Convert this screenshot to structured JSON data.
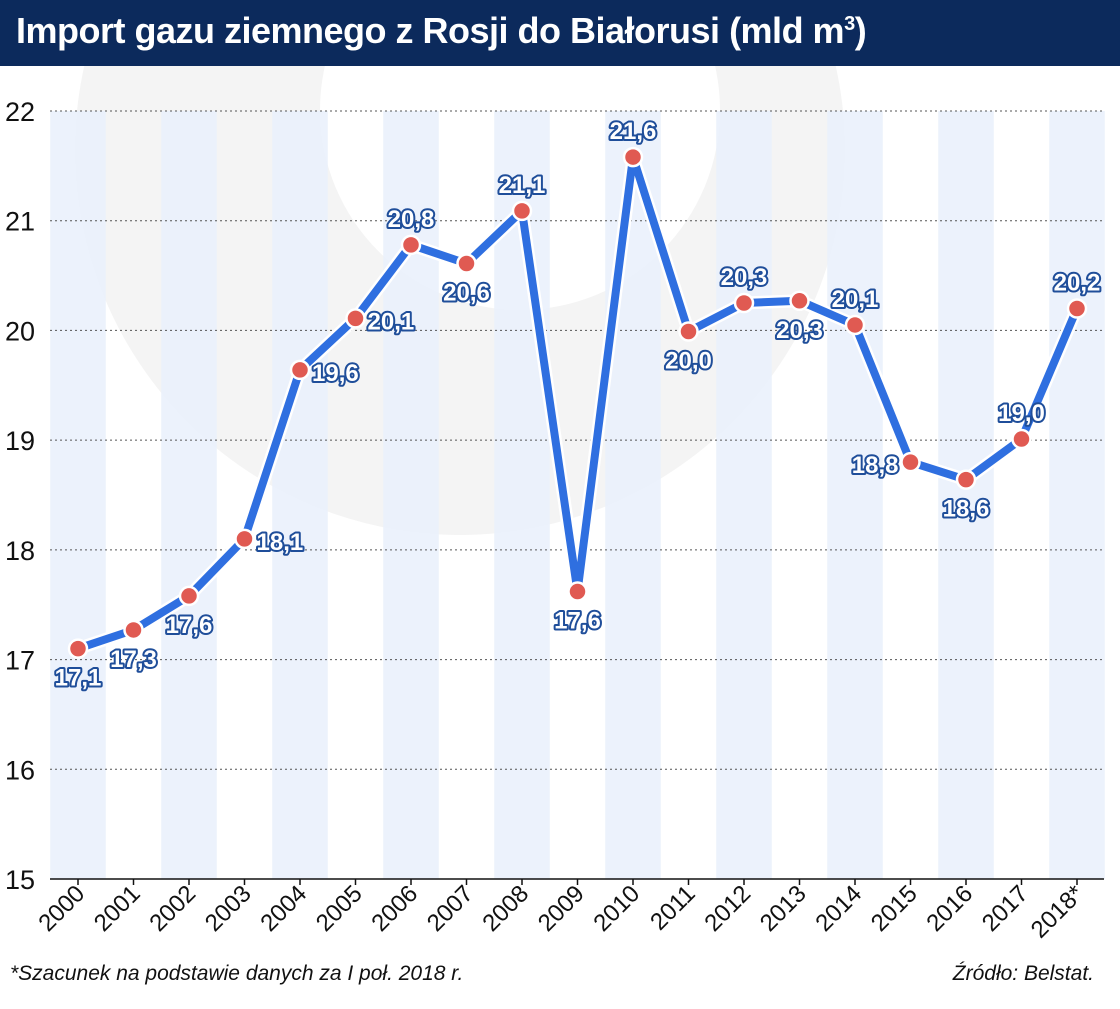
{
  "chart_data": {
    "type": "line",
    "title": "Import gazu ziemnego z Rosji do Białorusi (mld m",
    "title_sup": "3",
    "title_close": ")",
    "xlabel": "",
    "ylabel": "",
    "categories": [
      "2000",
      "2001",
      "2002",
      "2003",
      "2004",
      "2005",
      "2006",
      "2007",
      "2008",
      "2009",
      "2010",
      "2011",
      "2012",
      "2013",
      "2014",
      "2015",
      "2016",
      "2017",
      "2018*"
    ],
    "series": [
      {
        "name": "Import gazu",
        "values": [
          17.1,
          17.27,
          17.58,
          18.1,
          19.64,
          20.11,
          20.78,
          20.61,
          21.09,
          17.62,
          21.58,
          19.99,
          20.25,
          20.27,
          20.05,
          18.8,
          18.64,
          19.01,
          20.2
        ],
        "labels": [
          "17,1",
          "17,3",
          "17,6",
          "18,1",
          "19,6",
          "20,1",
          "20,8",
          "20,6",
          "21,1",
          "17,6",
          "21,6",
          "20,0",
          "20,3",
          "20,3",
          "20,1",
          "18,8",
          "18,6",
          "19,0",
          "20,2"
        ],
        "label_position": [
          "below",
          "below",
          "below",
          "right",
          "right",
          "right",
          "above",
          "below",
          "above",
          "below",
          "above",
          "below",
          "above",
          "below",
          "above",
          "left",
          "below",
          "above",
          "above"
        ]
      }
    ],
    "yticks": [
      15,
      16,
      17,
      18,
      19,
      20,
      21,
      22
    ],
    "ylim": [
      15,
      22
    ],
    "grid": true,
    "colors": {
      "line": "#2f6fe0",
      "line_outline": "#ffffff",
      "marker": "#e05a52",
      "label_text": "#ffffff",
      "label_outline": "#1f4e9a",
      "band": "#e9f0fb",
      "title_bg": "#0c2a5c"
    },
    "footnote": "*Szacunek na podstawie danych za I poł. 2018 r.",
    "source": "Źródło: Belstat."
  }
}
